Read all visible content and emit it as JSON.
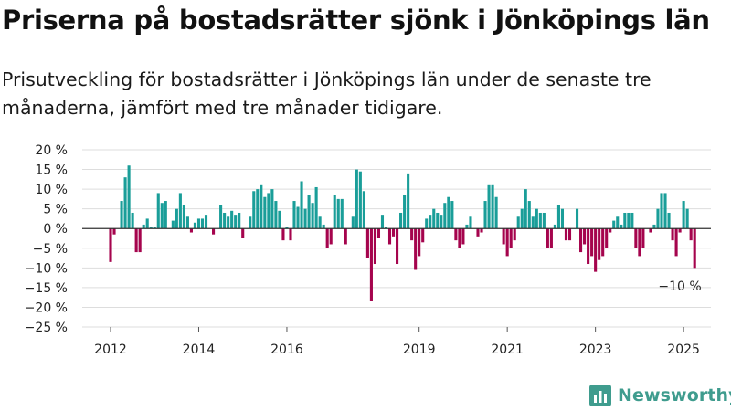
{
  "title": "Priserna på bostadsrätter sjönk i Jönköpings län",
  "subtitle": "Prisutveckling för bostadsrätter i Jönköpings län under de senaste tre månaderna, jämfört med tre månader tidigare.",
  "brand": "Newsworthy",
  "colors": {
    "positive": "#1a9e99",
    "negative": "#a5044d",
    "grid": "#dddddd",
    "zero_line": "#333333",
    "brand": "#3f9c8e"
  },
  "chart_data": {
    "type": "bar",
    "title": "",
    "xlabel": "",
    "ylabel": "",
    "ylim": [
      -25,
      20
    ],
    "y_ticks": [
      20,
      15,
      10,
      5,
      0,
      -5,
      -10,
      -15,
      -20,
      -25
    ],
    "y_tick_labels": [
      "20 %",
      "15 %",
      "10 %",
      "5 %",
      "0 %",
      "−5 %",
      "−10 %",
      "−15 %",
      "−20 %",
      "−25 %"
    ],
    "x_tick_labels": [
      {
        "label": "2012",
        "month_index": 0
      },
      {
        "label": "2014",
        "month_index": 24
      },
      {
        "label": "2016",
        "month_index": 48
      },
      {
        "label": "2019",
        "month_index": 84
      },
      {
        "label": "2021",
        "month_index": 108
      },
      {
        "label": "2023",
        "month_index": 132
      },
      {
        "label": "2025",
        "month_index": 156
      }
    ],
    "grid": true,
    "annotation": "−10 %",
    "start": "2012-01",
    "frequency": "monthly",
    "values": [
      -8.5,
      -1.5,
      0,
      7,
      13,
      16,
      4,
      -6,
      -6,
      1,
      2.5,
      0.5,
      0.5,
      9,
      6.5,
      7,
      0,
      2,
      5,
      9,
      6,
      3,
      -1,
      1.5,
      2.5,
      2.5,
      3.5,
      0,
      -1.5,
      0,
      6,
      4,
      3,
      4.5,
      3.5,
      4,
      -2.5,
      0,
      3,
      9.5,
      10,
      11,
      8,
      9,
      10,
      7,
      4.5,
      -3,
      0.5,
      -3,
      7,
      5.5,
      12,
      5,
      8.5,
      6.5,
      10.5,
      3,
      1,
      -5,
      -4,
      8.5,
      7.5,
      7.5,
      -4,
      0,
      3,
      15,
      14.5,
      9.5,
      -7.5,
      -18.5,
      -9,
      -2.5,
      3.5,
      0.5,
      -4,
      -2,
      -9,
      4,
      8.5,
      14,
      -3,
      -10.5,
      -7,
      -3.5,
      2.5,
      3.5,
      5,
      4,
      3.5,
      6.5,
      8,
      7,
      -3,
      -5,
      -4,
      1,
      3,
      0,
      -2,
      -1,
      7,
      11,
      11,
      8,
      0,
      -4,
      -7,
      -5,
      -3,
      3,
      5,
      10,
      7,
      3,
      5,
      4,
      4,
      -5,
      -5,
      1,
      6,
      5,
      -3,
      -3,
      0,
      5,
      -6,
      -4,
      -9,
      -7,
      -11,
      -8,
      -7,
      -5,
      -1,
      2,
      3,
      1,
      4,
      4,
      4,
      -5,
      -7,
      -5,
      0,
      -1,
      1,
      5,
      9,
      9,
      4,
      -3,
      -7,
      -1,
      7,
      5,
      -3,
      -10
    ]
  }
}
